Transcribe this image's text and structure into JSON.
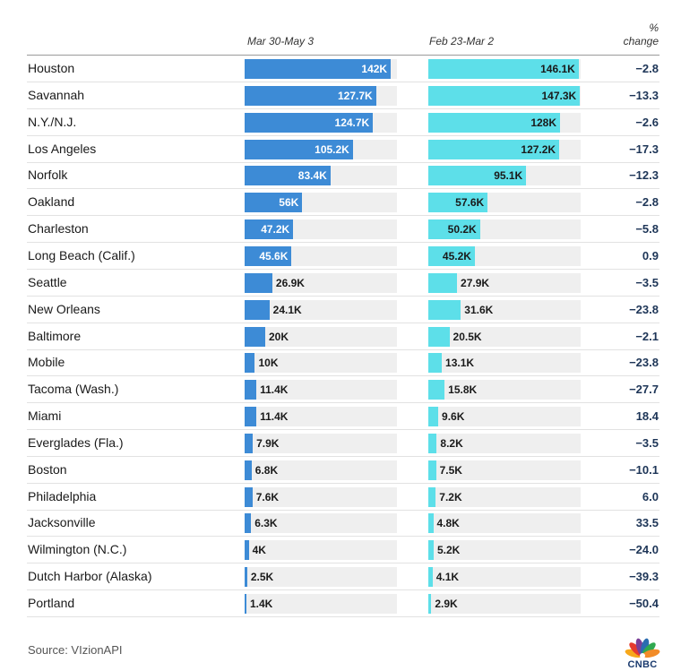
{
  "header": {
    "col1": "Mar 30-May 3",
    "col2": "Feb 23-Mar 2",
    "pct_line1": "%",
    "pct_line2": "change"
  },
  "colors": {
    "series1": "#3d8bd6",
    "series2": "#5ddfe9",
    "track": "#efefef",
    "pct_text": "#1d3557"
  },
  "chart_data": {
    "type": "bar",
    "title": "",
    "categories": [
      "Houston",
      "Savannah",
      "N.Y./N.J.",
      "Los Angeles",
      "Norfolk",
      "Oakland",
      "Charleston",
      "Long Beach (Calif.)",
      "Seattle",
      "New Orleans",
      "Baltimore",
      "Mobile",
      "Tacoma (Wash.)",
      "Miami",
      "Everglades (Fla.)",
      "Boston",
      "Philadelphia",
      "Jacksonville",
      "Wilmington (N.C.)",
      "Dutch Harbor (Alaska)",
      "Portland"
    ],
    "series": [
      {
        "name": "Mar 30-May 3",
        "values": [
          142,
          127.7,
          124.7,
          105.2,
          83.4,
          56,
          47.2,
          45.6,
          26.9,
          24.1,
          20,
          10,
          11.4,
          11.4,
          7.9,
          6.8,
          7.6,
          6.3,
          4,
          2.5,
          1.4
        ],
        "labels": [
          "142K",
          "127.7K",
          "124.7K",
          "105.2K",
          "83.4K",
          "56K",
          "47.2K",
          "45.6K",
          "26.9K",
          "24.1K",
          "20K",
          "10K",
          "11.4K",
          "11.4K",
          "7.9K",
          "6.8K",
          "7.6K",
          "6.3K",
          "4K",
          "2.5K",
          "1.4K"
        ]
      },
      {
        "name": "Feb 23-Mar 2",
        "values": [
          146.1,
          147.3,
          128,
          127.2,
          95.1,
          57.6,
          50.2,
          45.2,
          27.9,
          31.6,
          20.5,
          13.1,
          15.8,
          9.6,
          8.2,
          7.5,
          7.2,
          4.8,
          5.2,
          4.1,
          2.9
        ],
        "labels": [
          "146.1K",
          "147.3K",
          "128K",
          "127.2K",
          "95.1K",
          "57.6K",
          "50.2K",
          "45.2K",
          "27.9K",
          "31.6K",
          "20.5K",
          "13.1K",
          "15.8K",
          "9.6K",
          "8.2K",
          "7.5K",
          "7.2K",
          "4.8K",
          "5.2K",
          "4.1K",
          "2.9K"
        ]
      }
    ],
    "pct_change": [
      "−2.8",
      "−13.3",
      "−2.6",
      "−17.3",
      "−12.3",
      "−2.8",
      "−5.8",
      "0.9",
      "−3.5",
      "−23.8",
      "−2.1",
      "−23.8",
      "−27.7",
      "18.4",
      "−3.5",
      "−10.1",
      "6.0",
      "33.5",
      "−24.0",
      "−39.3",
      "−50.4"
    ],
    "xmax": 148
  },
  "footer": {
    "source": "Source: VIzionAPI",
    "logo_text": "CNBC"
  }
}
